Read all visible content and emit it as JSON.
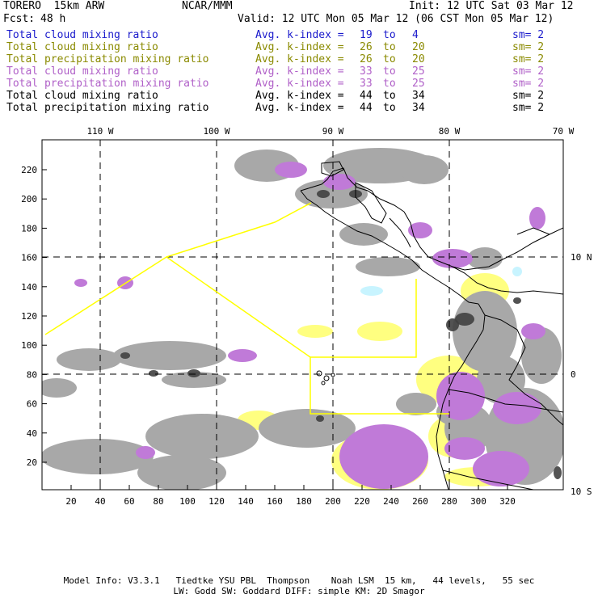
{
  "header": {
    "model": "TORERO  15km ARW",
    "org": "NCAR/MMM",
    "init": "Init: 12 UTC Sat 03 Mar 12",
    "fcst_label": "Fcst:",
    "fcst_value": "48 h",
    "valid": "Valid: 12 UTC Mon 05 Mar 12 (06 CST Mon 05 Mar 12)"
  },
  "legend": [
    {
      "field": "Total cloud mixing ratio",
      "stat": "Avg. k-index =",
      "from": "19",
      "to_word": "to",
      "to": "4",
      "sm": "sm= 2",
      "color": "#1a1acc"
    },
    {
      "field": "Total cloud mixing ratio",
      "stat": "Avg. k-index =",
      "from": "26",
      "to_word": "to",
      "to": "20",
      "sm": "sm= 2",
      "color": "#8a8a00"
    },
    {
      "field": "Total precipitation mixing ratio",
      "stat": "Avg. k-index =",
      "from": "26",
      "to_word": "to",
      "to": "20",
      "sm": "sm= 2",
      "color": "#8a8a00"
    },
    {
      "field": "Total cloud mixing ratio",
      "stat": "Avg. k-index =",
      "from": "33",
      "to_word": "to",
      "to": "25",
      "sm": "sm= 2",
      "color": "#b060c8"
    },
    {
      "field": "Total precipitation mixing ratio",
      "stat": "Avg. k-index =",
      "from": "33",
      "to_word": "to",
      "to": "25",
      "sm": "sm= 2",
      "color": "#b060c8"
    },
    {
      "field": "Total cloud mixing ratio",
      "stat": "Avg. k-index =",
      "from": "44",
      "to_word": "to",
      "to": "34",
      "sm": "sm= 2",
      "color": "#000000"
    },
    {
      "field": "Total precipitation mixing ratio",
      "stat": "Avg. k-index =",
      "from": "44",
      "to_word": "to",
      "to": "34",
      "sm": "sm= 2",
      "color": "#000000"
    }
  ],
  "map": {
    "lon_labels": [
      "110 W",
      "100 W",
      "90 W",
      "80 W",
      "70 W"
    ],
    "lat_labels": [
      "10 N",
      "0",
      "10 S"
    ],
    "x_ticks": [
      "20",
      "40",
      "60",
      "80",
      "100",
      "120",
      "140",
      "160",
      "180",
      "200",
      "220",
      "240",
      "260",
      "280",
      "300",
      "320"
    ],
    "y_ticks": [
      "20",
      "40",
      "60",
      "80",
      "100",
      "120",
      "140",
      "160",
      "180",
      "200",
      "220"
    ],
    "colors": {
      "gray": "#a8a8a8",
      "purple": "#c07ad8",
      "yellow": "#ffff80",
      "cyan": "#c8f4ff",
      "dark": "#404040",
      "domain_line": "#ffff00",
      "coast": "#000000"
    }
  },
  "footer": {
    "line1": "Model Info: V3.3.1   Tiedtke YSU PBL  Thompson    Noah LSM  15 km,   44 levels,   55 sec",
    "line2": "LW: Godd SW: Goddard DIFF: simple KM: 2D Smagor"
  }
}
